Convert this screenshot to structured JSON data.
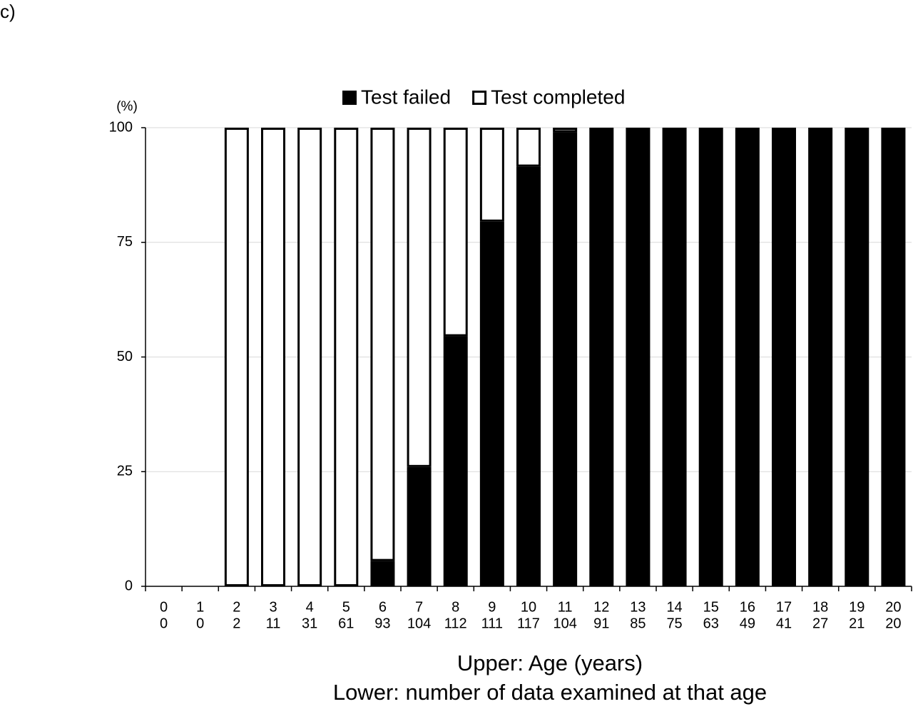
{
  "chart_data": {
    "type": "stacked_bar",
    "panel_label": "c)",
    "y_unit": "(%)",
    "xlabel": [
      "Upper: Age (years)",
      "Lower: number of data examined at that age"
    ],
    "categories": [
      "0",
      "1",
      "2",
      "3",
      "4",
      "5",
      "6",
      "7",
      "8",
      "9",
      "10",
      "11",
      "12",
      "13",
      "14",
      "15",
      "16",
      "17",
      "18",
      "19",
      "20"
    ],
    "category_sublabels": [
      0,
      0,
      2,
      11,
      31,
      61,
      93,
      104,
      112,
      111,
      117,
      104,
      91,
      85,
      75,
      63,
      49,
      41,
      27,
      21,
      20
    ],
    "series": [
      {
        "name": "Test failed",
        "color": "#000000",
        "values": [
          0,
          0,
          0,
          0,
          0,
          0,
          5.5,
          26,
          54.5,
          79.5,
          91.5,
          99,
          100,
          100,
          100,
          100,
          100,
          100,
          100,
          100,
          100
        ]
      },
      {
        "name": "Test completed",
        "color": "#ffffff",
        "values": [
          0,
          0,
          100,
          100,
          100,
          100,
          94.5,
          74,
          45.5,
          20.5,
          8.5,
          1,
          0,
          0,
          0,
          0,
          0,
          0,
          0,
          0,
          0
        ]
      }
    ],
    "ylim": [
      0,
      100
    ],
    "yticks": [
      0,
      25,
      50,
      75,
      100
    ],
    "grid": true,
    "legend": "top"
  }
}
